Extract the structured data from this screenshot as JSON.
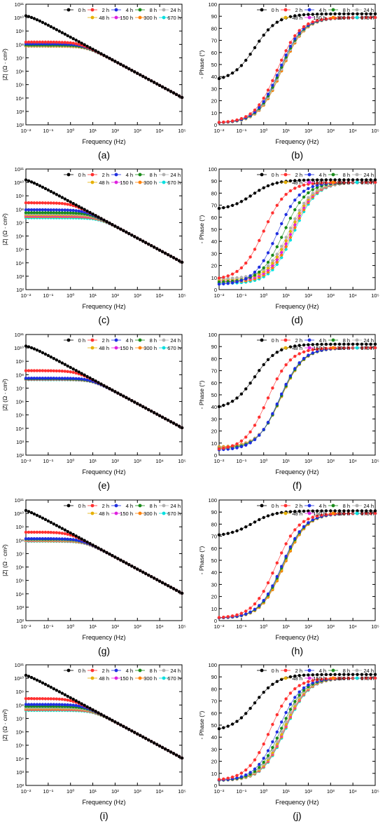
{
  "common": {
    "xlabel": "Frequency (Hz)",
    "impedance_ylabel": "|Z| (Ω · cm²)",
    "phase_ylabel": "- Phase (°)",
    "x_ticks": [
      "10⁻²",
      "10⁻¹",
      "10⁰",
      "10¹",
      "10²",
      "10³",
      "10⁴",
      "10⁵"
    ],
    "impedance_ticks": [
      "10²",
      "10³",
      "10⁴",
      "10⁵",
      "10⁶",
      "10⁷",
      "10⁸",
      "10⁹",
      "10¹⁰",
      "10¹¹"
    ],
    "phase_ticks": [
      "0",
      "10",
      "20",
      "30",
      "40",
      "50",
      "60",
      "70",
      "80",
      "90",
      "100"
    ],
    "series": [
      {
        "name": "0 h",
        "color": "#000000"
      },
      {
        "name": "2 h",
        "color": "#ff3030"
      },
      {
        "name": "4 h",
        "color": "#1f2fe0"
      },
      {
        "name": "8 h",
        "color": "#1a8a1a"
      },
      {
        "name": "24 h",
        "color": "#b0b0b0"
      },
      {
        "name": "48 h",
        "color": "#e6b000"
      },
      {
        "name": "150 h",
        "color": "#e020e0"
      },
      {
        "name": "300 h",
        "color": "#ff8000"
      },
      {
        "name": "670 h",
        "color": "#00e0e0"
      }
    ]
  },
  "chart_data": [
    {
      "label": "(a)",
      "type": "scatter",
      "x_scale": "log",
      "y_scale": "log",
      "xlim": [
        0.01,
        100000
      ],
      "ylim": [
        100,
        100000000000
      ],
      "grid": false,
      "legend": "top-right",
      "params": {
        "0 h": [
          20000000000.0,
          0.9
        ],
        "2 h": [
          150000000.0,
          0.9
        ],
        "4 h": [
          110000000.0,
          0.9
        ],
        "8 h": [
          90000000.0,
          0.9
        ],
        "24 h": [
          85000000.0,
          0.9
        ],
        "48 h": [
          80000000.0,
          0.9
        ],
        "150 h": [
          80000000.0,
          0.9
        ],
        "300 h": [
          75000000.0,
          0.9
        ],
        "670 h": [
          75000000.0,
          0.9
        ]
      }
    },
    {
      "label": "(b)",
      "type": "scatter",
      "x_scale": "log",
      "ylim": [
        0,
        100
      ],
      "grid": false,
      "legend": "top-right",
      "params": {
        "0 h": [
          36,
          0.4,
          92
        ],
        "2 h": [
          1.5,
          4,
          89
        ],
        "4 h": [
          1.5,
          5,
          89
        ],
        "8 h": [
          1.5,
          5.5,
          89
        ],
        "24 h": [
          1.5,
          6,
          89
        ],
        "48 h": [
          1.5,
          6,
          89
        ],
        "150 h": [
          1.5,
          6,
          89
        ],
        "300 h": [
          1.5,
          6.5,
          89
        ],
        "670 h": [
          1.5,
          6.5,
          89
        ]
      }
    },
    {
      "label": "(c)",
      "type": "scatter",
      "x_scale": "log",
      "y_scale": "log",
      "xlim": [
        0.01,
        100000
      ],
      "ylim": [
        100,
        100000000000
      ],
      "grid": false,
      "legend": "top-right",
      "params": {
        "0 h": [
          25000000000.0,
          0.9
        ],
        "2 h": [
          300000000.0,
          0.9
        ],
        "4 h": [
          90000000.0,
          0.9
        ],
        "8 h": [
          55000000.0,
          0.9
        ],
        "24 h": [
          45000000.0,
          0.9
        ],
        "48 h": [
          38000000.0,
          0.9
        ],
        "150 h": [
          32000000.0,
          0.9
        ],
        "300 h": [
          28000000.0,
          0.9
        ],
        "670 h": [
          23000000.0,
          0.9
        ]
      }
    },
    {
      "label": "(d)",
      "type": "scatter",
      "x_scale": "log",
      "ylim": [
        0,
        100
      ],
      "grid": false,
      "legend": "top-right",
      "params": {
        "0 h": [
          66,
          0.3,
          91
        ],
        "2 h": [
          8,
          1,
          89
        ],
        "4 h": [
          4,
          4,
          89
        ],
        "8 h": [
          6,
          8,
          89
        ],
        "24 h": [
          9,
          14,
          89
        ],
        "48 h": [
          8,
          16,
          89
        ],
        "150 h": [
          7,
          18,
          89
        ],
        "300 h": [
          6,
          20,
          89
        ],
        "670 h": [
          5,
          22,
          89
        ]
      }
    },
    {
      "label": "(e)",
      "type": "scatter",
      "x_scale": "log",
      "y_scale": "log",
      "xlim": [
        0.01,
        100000
      ],
      "ylim": [
        100,
        100000000000
      ],
      "grid": false,
      "legend": "top-right",
      "params": {
        "0 h": [
          20000000000.0,
          0.9
        ],
        "2 h": [
          200000000.0,
          0.9
        ],
        "4 h": [
          55000000.0,
          0.9
        ],
        "8 h": [
          50000000.0,
          0.9
        ],
        "24 h": [
          50000000.0,
          0.9
        ],
        "48 h": [
          48000000.0,
          0.9
        ],
        "150 h": [
          46000000.0,
          0.9
        ],
        "300 h": [
          45000000.0,
          0.9
        ],
        "670 h": [
          43000000.0,
          0.9
        ]
      }
    },
    {
      "label": "(f)",
      "type": "scatter",
      "x_scale": "log",
      "ylim": [
        0,
        100
      ],
      "grid": false,
      "legend": "top-right",
      "params": {
        "0 h": [
          38,
          0.4,
          92
        ],
        "2 h": [
          4,
          1.5,
          89
        ],
        "4 h": [
          4,
          5,
          89
        ],
        "8 h": [
          5,
          5.5,
          89
        ],
        "24 h": [
          5.5,
          5.5,
          89
        ],
        "48 h": [
          6,
          5.8,
          89
        ],
        "150 h": [
          6,
          5.8,
          89
        ],
        "300 h": [
          6.5,
          6,
          89
        ],
        "670 h": [
          6.5,
          6,
          89
        ]
      }
    },
    {
      "label": "(g)",
      "type": "scatter",
      "x_scale": "log",
      "y_scale": "log",
      "xlim": [
        0.01,
        100000
      ],
      "ylim": [
        100,
        100000000000
      ],
      "grid": false,
      "legend": "top-right",
      "params": {
        "0 h": [
          30000000000.0,
          0.9
        ],
        "2 h": [
          400000000.0,
          0.9
        ],
        "4 h": [
          130000000.0,
          0.9
        ],
        "8 h": [
          120000000.0,
          0.9
        ],
        "24 h": [
          110000000.0,
          0.9
        ],
        "48 h": [
          100000000.0,
          0.9
        ],
        "150 h": [
          95000000.0,
          0.9
        ],
        "300 h": [
          90000000.0,
          0.9
        ],
        "670 h": [
          85000000.0,
          0.9
        ]
      }
    },
    {
      "label": "(h)",
      "type": "scatter",
      "x_scale": "log",
      "ylim": [
        0,
        100
      ],
      "grid": false,
      "legend": "top-right",
      "params": {
        "0 h": [
          70,
          0.3,
          91
        ],
        "2 h": [
          2,
          3.5,
          89
        ],
        "4 h": [
          2,
          6.5,
          89
        ],
        "8 h": [
          2,
          7,
          89
        ],
        "24 h": [
          2,
          7,
          89
        ],
        "48 h": [
          2,
          7.5,
          89
        ],
        "150 h": [
          2,
          7.5,
          89
        ],
        "300 h": [
          2,
          8,
          89
        ],
        "670 h": [
          2,
          8,
          89
        ]
      }
    },
    {
      "label": "(i)",
      "type": "scatter",
      "x_scale": "log",
      "y_scale": "log",
      "xlim": [
        0.01,
        100000
      ],
      "ylim": [
        100,
        100000000000
      ],
      "grid": false,
      "legend": "top-right",
      "params": {
        "0 h": [
          30000000000.0,
          0.9
        ],
        "2 h": [
          300000000.0,
          0.9
        ],
        "4 h": [
          110000000.0,
          0.9
        ],
        "8 h": [
          80000000.0,
          0.9
        ],
        "24 h": [
          65000000.0,
          0.9
        ],
        "48 h": [
          55000000.0,
          0.9
        ],
        "150 h": [
          50000000.0,
          0.9
        ],
        "300 h": [
          45000000.0,
          0.9
        ],
        "670 h": [
          40000000.0,
          0.9
        ]
      }
    },
    {
      "label": "(j)",
      "type": "scatter",
      "x_scale": "log",
      "ylim": [
        0,
        100
      ],
      "grid": false,
      "legend": "top-right",
      "params": {
        "0 h": [
          45,
          0.4,
          92
        ],
        "2 h": [
          4,
          2,
          89
        ],
        "4 h": [
          4,
          4.5,
          89
        ],
        "8 h": [
          4,
          6,
          89
        ],
        "24 h": [
          4,
          7,
          89
        ],
        "48 h": [
          4,
          8,
          89
        ],
        "150 h": [
          4,
          8.5,
          89
        ],
        "300 h": [
          4,
          9,
          89
        ],
        "670 h": [
          4,
          9.5,
          89
        ]
      }
    }
  ]
}
